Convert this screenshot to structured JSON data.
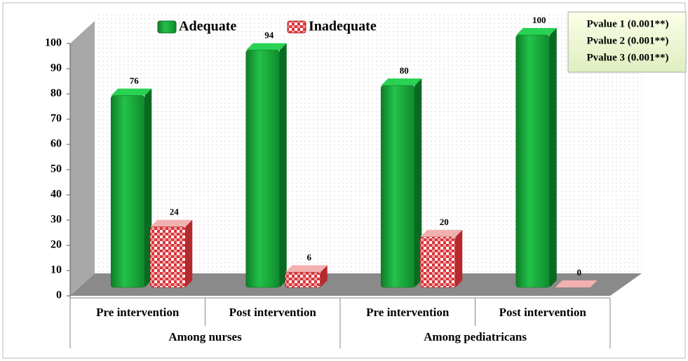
{
  "chart_data": {
    "type": "bar",
    "categories": [
      "Pre intervention",
      "Post intervention",
      "Pre intervention",
      "Post intervention"
    ],
    "groups": [
      {
        "label": "Among nurses",
        "span": 2
      },
      {
        "label": "Among pediatricans",
        "span": 2
      }
    ],
    "series": [
      {
        "name": "Adequate",
        "color": "#1aa33a",
        "values": [
          76,
          94,
          80,
          100
        ]
      },
      {
        "name": "Inadequate",
        "color": "#d9343a",
        "values": [
          24,
          6,
          20,
          0
        ]
      }
    ],
    "ylim": [
      0,
      100
    ],
    "yticks": [
      0,
      10,
      20,
      30,
      40,
      50,
      60,
      70,
      80,
      90,
      100
    ],
    "annotations": [
      "Pvalue 1 (0.001**)",
      "Pvalue 2 (0.001**)",
      "Pvalue 3 (0.001**)"
    ],
    "legend": "top"
  }
}
